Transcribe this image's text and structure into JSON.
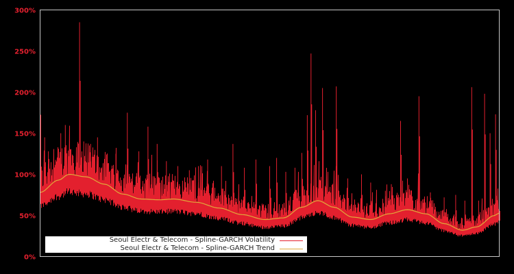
{
  "chart_data": {
    "type": "line",
    "title": "",
    "xlabel": "",
    "ylabel": "",
    "ylim": [
      0,
      300
    ],
    "yticks": [
      "0%",
      "50%",
      "100%",
      "150%",
      "200%",
      "250%",
      "300%"
    ],
    "ytick_values": [
      0,
      50,
      100,
      150,
      200,
      250,
      300
    ],
    "grid": false,
    "legend_position": "lower-left",
    "series": [
      {
        "name": "Seoul Electr & Telecom - Spline-GARCH Volatility",
        "color": "#e3202e",
        "style": "noisy-volatility",
        "baseline_ratio": 0.82,
        "spikes": [
          {
            "t": 0.0,
            "v": 230
          },
          {
            "t": 0.01,
            "v": 145
          },
          {
            "t": 0.018,
            "v": 128
          },
          {
            "t": 0.03,
            "v": 118
          },
          {
            "t": 0.045,
            "v": 150
          },
          {
            "t": 0.055,
            "v": 160
          },
          {
            "t": 0.072,
            "v": 122
          },
          {
            "t": 0.086,
            "v": 285
          },
          {
            "t": 0.095,
            "v": 140
          },
          {
            "t": 0.11,
            "v": 137
          },
          {
            "t": 0.125,
            "v": 145
          },
          {
            "t": 0.14,
            "v": 115
          },
          {
            "t": 0.165,
            "v": 125
          },
          {
            "t": 0.19,
            "v": 175
          },
          {
            "t": 0.215,
            "v": 128
          },
          {
            "t": 0.235,
            "v": 158
          },
          {
            "t": 0.255,
            "v": 137
          },
          {
            "t": 0.275,
            "v": 116
          },
          {
            "t": 0.3,
            "v": 110
          },
          {
            "t": 0.325,
            "v": 105
          },
          {
            "t": 0.345,
            "v": 110
          },
          {
            "t": 0.365,
            "v": 118
          },
          {
            "t": 0.395,
            "v": 110
          },
          {
            "t": 0.42,
            "v": 137
          },
          {
            "t": 0.445,
            "v": 108
          },
          {
            "t": 0.47,
            "v": 118
          },
          {
            "t": 0.5,
            "v": 110
          },
          {
            "t": 0.515,
            "v": 120
          },
          {
            "t": 0.535,
            "v": 103
          },
          {
            "t": 0.555,
            "v": 108
          },
          {
            "t": 0.57,
            "v": 126
          },
          {
            "t": 0.582,
            "v": 172
          },
          {
            "t": 0.59,
            "v": 247
          },
          {
            "t": 0.6,
            "v": 178
          },
          {
            "t": 0.615,
            "v": 205
          },
          {
            "t": 0.645,
            "v": 207
          },
          {
            "t": 0.67,
            "v": 95
          },
          {
            "t": 0.7,
            "v": 100
          },
          {
            "t": 0.72,
            "v": 90
          },
          {
            "t": 0.752,
            "v": 80
          },
          {
            "t": 0.765,
            "v": 88
          },
          {
            "t": 0.785,
            "v": 165
          },
          {
            "t": 0.8,
            "v": 95
          },
          {
            "t": 0.825,
            "v": 195
          },
          {
            "t": 0.85,
            "v": 78
          },
          {
            "t": 0.88,
            "v": 72
          },
          {
            "t": 0.905,
            "v": 75
          },
          {
            "t": 0.925,
            "v": 68
          },
          {
            "t": 0.94,
            "v": 206
          },
          {
            "t": 0.955,
            "v": 68
          },
          {
            "t": 0.968,
            "v": 198
          },
          {
            "t": 0.98,
            "v": 150
          },
          {
            "t": 0.992,
            "v": 173
          },
          {
            "t": 1.0,
            "v": 74
          }
        ]
      },
      {
        "name": "Seoul Electr & Telecom - Spline-GARCH Trend",
        "color": "#e0a93a",
        "style": "smooth",
        "points": [
          {
            "t": 0.0,
            "v": 78
          },
          {
            "t": 0.04,
            "v": 93
          },
          {
            "t": 0.063,
            "v": 100
          },
          {
            "t": 0.1,
            "v": 97
          },
          {
            "t": 0.14,
            "v": 88
          },
          {
            "t": 0.18,
            "v": 76
          },
          {
            "t": 0.22,
            "v": 70
          },
          {
            "t": 0.26,
            "v": 69
          },
          {
            "t": 0.29,
            "v": 70
          },
          {
            "t": 0.34,
            "v": 66
          },
          {
            "t": 0.39,
            "v": 59
          },
          {
            "t": 0.44,
            "v": 51
          },
          {
            "t": 0.49,
            "v": 45
          },
          {
            "t": 0.53,
            "v": 47
          },
          {
            "t": 0.57,
            "v": 60
          },
          {
            "t": 0.605,
            "v": 68
          },
          {
            "t": 0.64,
            "v": 60
          },
          {
            "t": 0.68,
            "v": 48
          },
          {
            "t": 0.72,
            "v": 45
          },
          {
            "t": 0.76,
            "v": 52
          },
          {
            "t": 0.8,
            "v": 57
          },
          {
            "t": 0.84,
            "v": 52
          },
          {
            "t": 0.88,
            "v": 40
          },
          {
            "t": 0.92,
            "v": 32
          },
          {
            "t": 0.95,
            "v": 36
          },
          {
            "t": 0.99,
            "v": 50
          },
          {
            "t": 1.03,
            "v": 57
          },
          {
            "t": 1.0,
            "v": 53
          }
        ]
      }
    ]
  },
  "legend": {
    "items": [
      {
        "label": "Seoul Electr & Telecom - Spline-GARCH Volatility",
        "color": "#e3202e"
      },
      {
        "label": "Seoul Electr & Telecom - Spline-GARCH Trend",
        "color": "#e0a93a"
      }
    ]
  },
  "colors": {
    "background": "#000000",
    "frame": "#c8c8c8",
    "tick_label": "#e3202e"
  }
}
